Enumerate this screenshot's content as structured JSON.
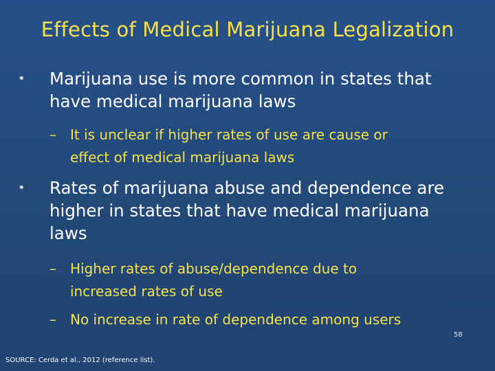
{
  "slide": {
    "title": "Effects of Medical Marijuana Legalization",
    "bullets": [
      {
        "marker": "•",
        "lines": [
          "Marijuana use is more common in states that",
          "have medical marijuana laws"
        ],
        "subs": [
          {
            "marker": "–",
            "lines": [
              "It is unclear if higher rates of use are cause or",
              "effect of medical marijuana laws"
            ]
          }
        ]
      },
      {
        "marker": "•",
        "lines": [
          "Rates of marijuana abuse and dependence are",
          "higher in states that have medical marijuana",
          "laws"
        ],
        "subs": [
          {
            "marker": "–",
            "lines": [
              "Higher rates of abuse/dependence due to",
              "increased rates of use"
            ]
          },
          {
            "marker": "–",
            "lines": [
              "No increase in rate of dependence among users"
            ]
          }
        ]
      }
    ],
    "source": "SOURCE: Cerda et al., 2012 (reference list).",
    "page_number": "58",
    "colors": {
      "background": "#244a7e",
      "title": "#f5e24a",
      "bullet_text": "#ffffff",
      "sub_text": "#f5e24a"
    }
  }
}
